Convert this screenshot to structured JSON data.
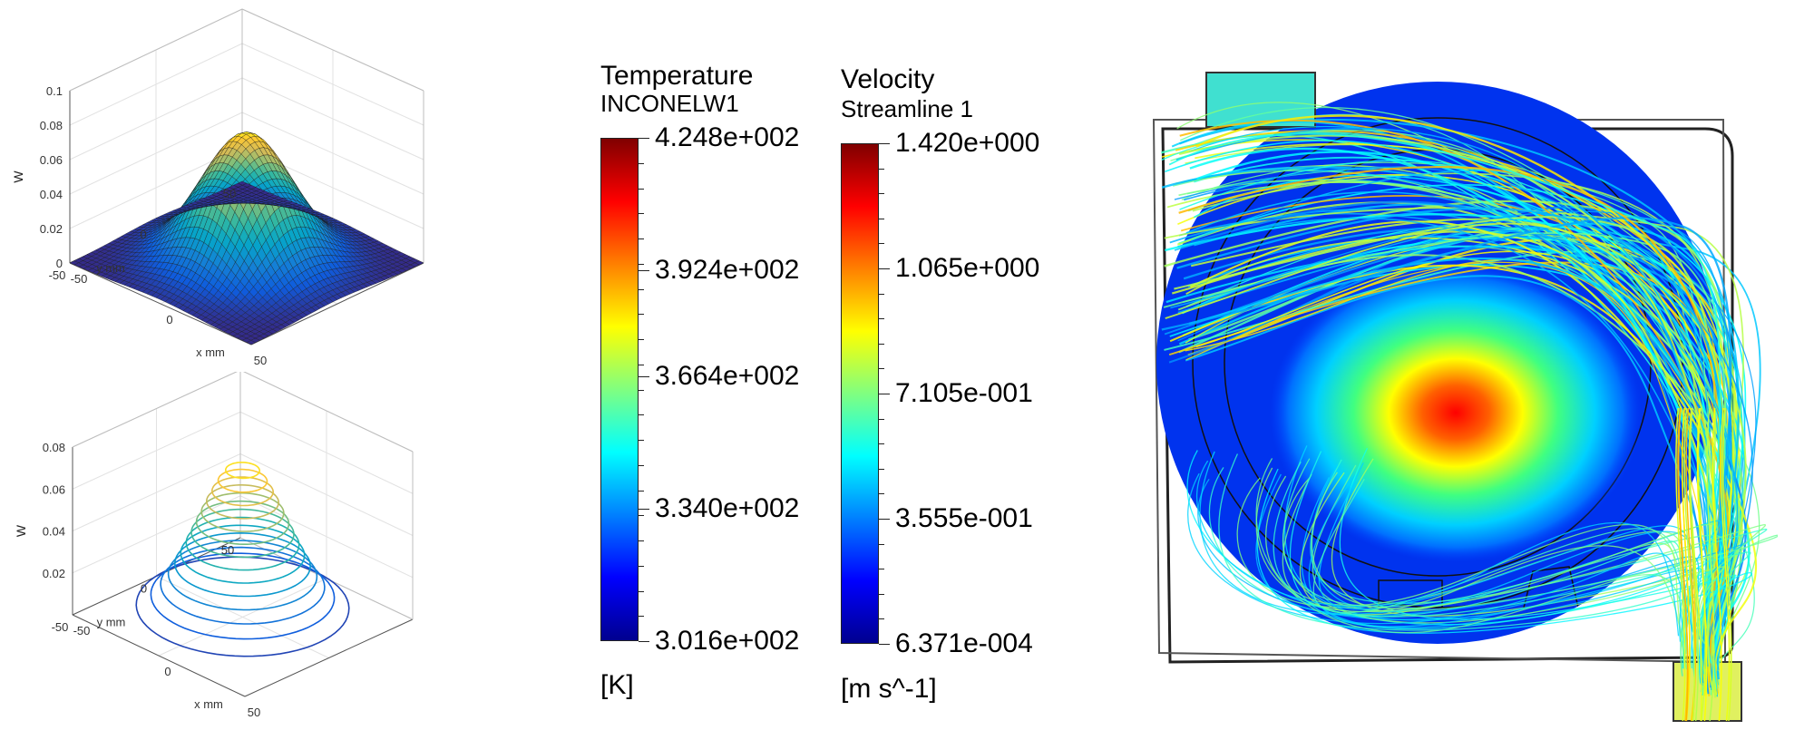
{
  "chart_data": [
    {
      "type": "surface3d",
      "zlabel": "W",
      "xlabel": "x mm",
      "ylabel": "y mm",
      "xlim": [
        -50,
        50
      ],
      "ylim": [
        -50,
        50
      ],
      "zlim": [
        0,
        0.1
      ],
      "x_ticks": [
        "-50",
        "0",
        "50"
      ],
      "y_ticks": [
        "50",
        "0",
        "-50"
      ],
      "z_ticks": [
        "0",
        "0.02",
        "0.04",
        "0.06",
        "0.08",
        "0.1"
      ],
      "peak": {
        "x": 0,
        "y": 0,
        "z": 0.075
      },
      "colormap": "parula"
    },
    {
      "type": "contour3d",
      "zlabel": "W",
      "xlabel": "x mm",
      "ylabel": "y mm",
      "xlim": [
        -50,
        50
      ],
      "ylim": [
        -50,
        50
      ],
      "zlim": [
        0,
        0.08
      ],
      "x_ticks": [
        "-50",
        "0",
        "50"
      ],
      "y_ticks": [
        "50",
        "0",
        "-50"
      ],
      "z_ticks": [
        "0.02",
        "0.04",
        "0.06",
        "0.08"
      ],
      "levels": [
        0.005,
        0.01,
        0.015,
        0.02,
        0.025,
        0.03,
        0.035,
        0.04,
        0.045,
        0.05,
        0.055,
        0.06,
        0.065,
        0.07
      ],
      "colormap": "parula"
    },
    {
      "type": "colorbar",
      "title": "Temperature",
      "subtitle": "INCONELW1",
      "unit": "[K]",
      "min": 301.6,
      "max": 424.8,
      "labels": [
        {
          "text": "4.248e+002",
          "value": 424.8
        },
        {
          "text": "3.924e+002",
          "value": 392.4
        },
        {
          "text": "3.664e+002",
          "value": 366.4
        },
        {
          "text": "3.340e+002",
          "value": 334.0
        },
        {
          "text": "3.016e+002",
          "value": 301.6
        }
      ],
      "minor_ticks": 20
    },
    {
      "type": "colorbar",
      "title": "Velocity",
      "subtitle": "Streamline 1",
      "unit": "[m s^-1]",
      "min": 0.0006371,
      "max": 1.42,
      "labels": [
        {
          "text": "1.420e+000",
          "value": 1.42
        },
        {
          "text": "1.065e+000",
          "value": 1.065
        },
        {
          "text": "7.105e-001",
          "value": 0.7105
        },
        {
          "text": "3.555e-001",
          "value": 0.3555
        },
        {
          "text": "6.371e-004",
          "value": 0.0006371
        }
      ],
      "minor_ticks": 20
    }
  ],
  "colors": {
    "jet": [
      "#00008f",
      "#0000ff",
      "#0080ff",
      "#00ffff",
      "#80ff80",
      "#ffff00",
      "#ff8000",
      "#ff0000",
      "#800000"
    ],
    "parula": [
      "#352a87",
      "#0f5cdd",
      "#1481d6",
      "#06a4ca",
      "#2eb7a4",
      "#87bf77",
      "#d1bb59",
      "#fec832",
      "#f9fb0e"
    ]
  }
}
